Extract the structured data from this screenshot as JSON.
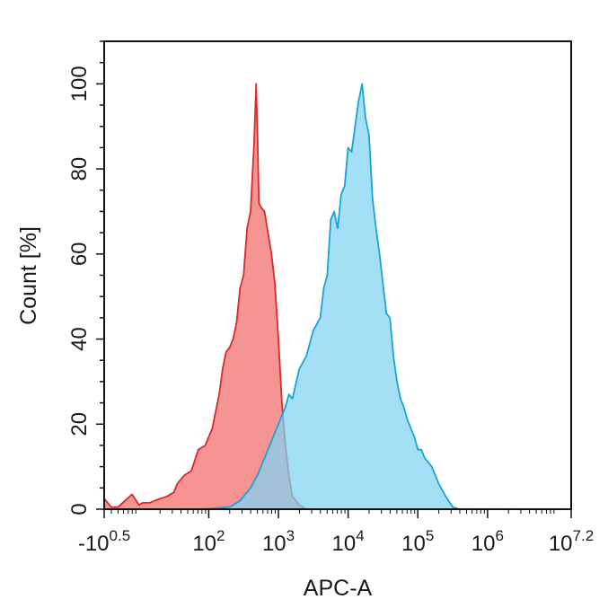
{
  "chart_data": {
    "type": "area",
    "xlabel": "APC-A",
    "ylabel": "Count [%]",
    "x_scale": "biexponential (log decades)",
    "xlim_log10": [
      0.5,
      7.2
    ],
    "ylim": [
      0,
      110
    ],
    "grid": false,
    "legend": "none",
    "y_ticks": [
      {
        "value": 0,
        "label": "0"
      },
      {
        "value": 20,
        "label": "20"
      },
      {
        "value": 40,
        "label": "40"
      },
      {
        "value": 60,
        "label": "60"
      },
      {
        "value": 80,
        "label": "80"
      },
      {
        "value": 100,
        "label": "100"
      }
    ],
    "x_ticks": [
      {
        "value": 0.5,
        "base": "-10",
        "exp": "0.5"
      },
      {
        "value": 2,
        "base": "10",
        "exp": "2"
      },
      {
        "value": 3,
        "base": "10",
        "exp": "3"
      },
      {
        "value": 4,
        "base": "10",
        "exp": "4"
      },
      {
        "value": 5,
        "base": "10",
        "exp": "5"
      },
      {
        "value": 6,
        "base": "10",
        "exp": "6"
      },
      {
        "value": 7.2,
        "base": "10",
        "exp": "7.2"
      }
    ],
    "series": [
      {
        "color": "#d92b2b",
        "fill": "#f26a6a",
        "x_log10": [
          0.5,
          0.6,
          0.7,
          0.9,
          1.0,
          1.05,
          1.15,
          1.3,
          1.4,
          1.5,
          1.55,
          1.65,
          1.75,
          1.85,
          1.95,
          2.0,
          2.05,
          2.1,
          2.15,
          2.2,
          2.25,
          2.3,
          2.35,
          2.4,
          2.45,
          2.5,
          2.55,
          2.6,
          2.65,
          2.68,
          2.7,
          2.72,
          2.75,
          2.8,
          2.85,
          2.9,
          2.95,
          3.0,
          3.05,
          3.1,
          3.15,
          3.2,
          3.3,
          3.4
        ],
        "y": [
          2.5,
          0.5,
          0.5,
          3.5,
          1.0,
          1.5,
          1.5,
          2.5,
          3.0,
          4.0,
          6.0,
          8.0,
          9.0,
          14.0,
          15.0,
          17.0,
          19.0,
          23.0,
          27.0,
          33.0,
          37.0,
          38.0,
          40.0,
          44.0,
          52.0,
          55.0,
          66.0,
          70.0,
          86.0,
          100.0,
          88.0,
          72.0,
          71.0,
          70.0,
          65.0,
          60.0,
          53.0,
          40.0,
          25.0,
          15.0,
          8.0,
          3.0,
          1.0,
          0.0
        ]
      },
      {
        "color": "#1aa3d9",
        "fill": "#80d4f2",
        "x_log10": [
          1.9,
          2.3,
          2.45,
          2.6,
          2.7,
          2.8,
          2.9,
          3.0,
          3.1,
          3.15,
          3.2,
          3.3,
          3.4,
          3.5,
          3.6,
          3.65,
          3.7,
          3.75,
          3.8,
          3.85,
          3.9,
          3.95,
          4.0,
          4.05,
          4.1,
          4.15,
          4.2,
          4.25,
          4.3,
          4.35,
          4.4,
          4.45,
          4.5,
          4.55,
          4.6,
          4.65,
          4.7,
          4.75,
          4.8,
          4.85,
          4.9,
          4.95,
          5.0,
          5.05,
          5.1,
          5.2,
          5.3,
          5.4,
          5.5,
          5.6
        ],
        "y": [
          0.0,
          0.5,
          2.0,
          5.0,
          8.0,
          12.0,
          16.0,
          20.0,
          24.0,
          27.0,
          26.0,
          33.0,
          36.0,
          42.0,
          45.0,
          52.0,
          55.0,
          68.0,
          70.0,
          66.0,
          74.0,
          76.0,
          85.0,
          84.0,
          90.0,
          96.0,
          100.0,
          92.0,
          88.0,
          73.0,
          66.0,
          60.0,
          53.0,
          46.0,
          45.0,
          36.0,
          30.0,
          26.0,
          24.0,
          21.0,
          19.0,
          17.0,
          14.0,
          14.0,
          12.0,
          10.0,
          6.0,
          3.0,
          0.5,
          0.0
        ]
      }
    ]
  }
}
